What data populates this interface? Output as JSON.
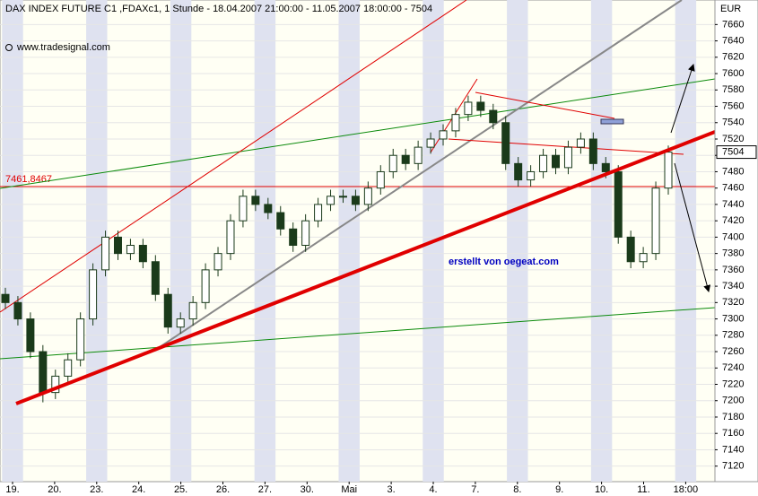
{
  "chart_data": {
    "type": "candlestick",
    "title": "DAX INDEX FUTURE C1 ,FDAXc1, 1 Stunde - 18.04.2007 21:00:00 - 11.05.2007 18:00:00 - 7504",
    "source": "www.tradesignal.com",
    "annotation": "erstellt von oegeat.com",
    "y_unit": "EUR",
    "categories": [
      "19.",
      "20.",
      "23.",
      "24.",
      "25.",
      "26.",
      "27.",
      "30.",
      "Mai",
      "3.",
      "4.",
      "7.",
      "8.",
      "9.",
      "10.",
      "11.",
      "18:00"
    ],
    "open": [
      7330,
      7320,
      7300,
      7260,
      7210,
      7230,
      7250,
      7300,
      7360,
      7400,
      7380,
      7390,
      7370,
      7330,
      7290,
      7300,
      7320,
      7360,
      7380,
      7420,
      7450,
      7440,
      7430,
      7410,
      7390,
      7420,
      7440,
      7450,
      7450,
      7440,
      7460,
      7480,
      7500,
      7490,
      7510,
      7520,
      7530,
      7550,
      7565,
      7555,
      7540,
      7490,
      7470,
      7480,
      7500,
      7485,
      7510,
      7520,
      7490,
      7480,
      7400,
      7370,
      7380,
      7460
    ],
    "high": [
      7338,
      7328,
      7308,
      7268,
      7238,
      7258,
      7308,
      7368,
      7408,
      7408,
      7398,
      7398,
      7378,
      7338,
      7308,
      7328,
      7368,
      7388,
      7428,
      7458,
      7458,
      7448,
      7438,
      7418,
      7428,
      7448,
      7458,
      7458,
      7458,
      7468,
      7488,
      7508,
      7508,
      7518,
      7528,
      7538,
      7558,
      7573,
      7573,
      7563,
      7548,
      7498,
      7488,
      7508,
      7508,
      7518,
      7528,
      7528,
      7498,
      7488,
      7408,
      7388,
      7468,
      7512
    ],
    "low": [
      7312,
      7292,
      7252,
      7198,
      7202,
      7222,
      7242,
      7292,
      7352,
      7372,
      7372,
      7362,
      7322,
      7282,
      7282,
      7292,
      7312,
      7352,
      7372,
      7412,
      7432,
      7422,
      7402,
      7382,
      7382,
      7412,
      7432,
      7442,
      7432,
      7432,
      7452,
      7472,
      7482,
      7482,
      7502,
      7512,
      7522,
      7542,
      7547,
      7532,
      7482,
      7462,
      7462,
      7472,
      7477,
      7477,
      7502,
      7482,
      7472,
      7392,
      7362,
      7362,
      7372,
      7452
    ],
    "close": [
      7320,
      7300,
      7260,
      7210,
      7230,
      7250,
      7300,
      7360,
      7400,
      7380,
      7390,
      7370,
      7330,
      7290,
      7300,
      7320,
      7360,
      7380,
      7420,
      7450,
      7440,
      7430,
      7410,
      7390,
      7420,
      7440,
      7450,
      7450,
      7440,
      7460,
      7480,
      7500,
      7490,
      7510,
      7520,
      7530,
      7550,
      7565,
      7555,
      7540,
      7490,
      7470,
      7480,
      7500,
      7485,
      7510,
      7520,
      7490,
      7480,
      7400,
      7370,
      7380,
      7460,
      7504
    ],
    "up_color": "#ffffff",
    "down_color": "#1a3a1a",
    "ylim": [
      7101,
      7690
    ],
    "yticks": [
      7120,
      7140,
      7160,
      7180,
      7200,
      7220,
      7240,
      7260,
      7280,
      7300,
      7320,
      7340,
      7360,
      7380,
      7400,
      7420,
      7440,
      7460,
      7480,
      7500,
      7520,
      7540,
      7560,
      7580,
      7600,
      7620,
      7640,
      7660
    ],
    "hline": {
      "value": 7461.8467,
      "label": "7461,8467",
      "color": "#e00000"
    },
    "last_price": 7504,
    "grid": true
  }
}
